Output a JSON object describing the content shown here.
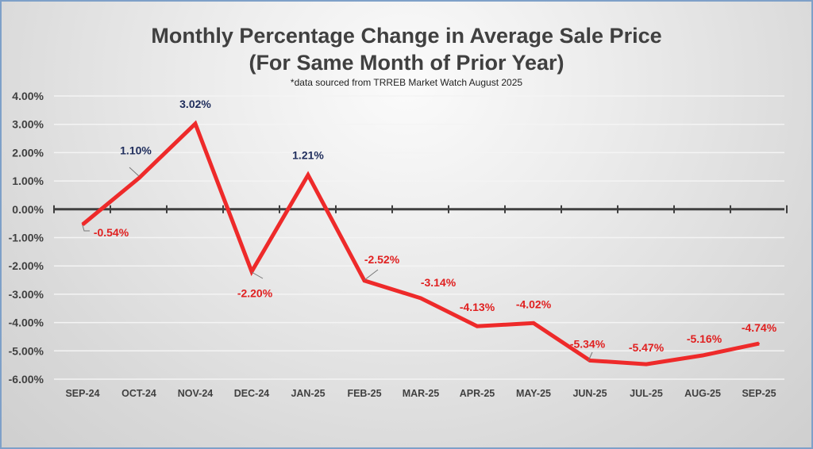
{
  "chart_data": {
    "type": "line",
    "title": "Monthly Percentage Change in Average Sale Price",
    "title_line2": "(For Same Month of Prior Year)",
    "subtitle": "*data sourced from TRREB Market Watch August 2025",
    "xlabel": "",
    "ylabel": "",
    "categories": [
      "SEP-24",
      "OCT-24",
      "NOV-24",
      "DEC-24",
      "JAN-25",
      "FEB-25",
      "MAR-25",
      "APR-25",
      "MAY-25",
      "JUN-25",
      "JUL-25",
      "AUG-25",
      "SEP-25"
    ],
    "series": [
      {
        "name": "Percentage Change in Average Sale Price",
        "values": [
          -0.54,
          1.1,
          3.02,
          -2.2,
          1.21,
          -2.52,
          -3.14,
          -4.13,
          -4.02,
          -5.34,
          -5.47,
          -5.16,
          -4.74
        ],
        "data_labels": [
          "-0.54%",
          "1.10%",
          "3.02%",
          "-2.20%",
          "1.21%",
          "-2.52%",
          "-3.14%",
          "-4.13%",
          "-4.02%",
          "-5.34%",
          "-5.47%",
          "-5.16%",
          "-4.74%"
        ],
        "color": "#ee2a2a"
      }
    ],
    "ylim": [
      -6,
      4
    ],
    "yticks": [
      4,
      3,
      2,
      1,
      0,
      -1,
      -2,
      -3,
      -4,
      -5,
      -6
    ],
    "ytick_labels": [
      "4.00%",
      "3.00%",
      "2.00%",
      "1.00%",
      "0.00%",
      "-1.00%",
      "-2.00%",
      "-3.00%",
      "-4.00%",
      "-5.00%",
      "-6.00%"
    ],
    "grid": true,
    "legend": "none",
    "colors": {
      "line": "#ee2a2a",
      "positive_label": "#1f2d5c",
      "negative_label": "#e02020",
      "axis": "#404040"
    }
  }
}
